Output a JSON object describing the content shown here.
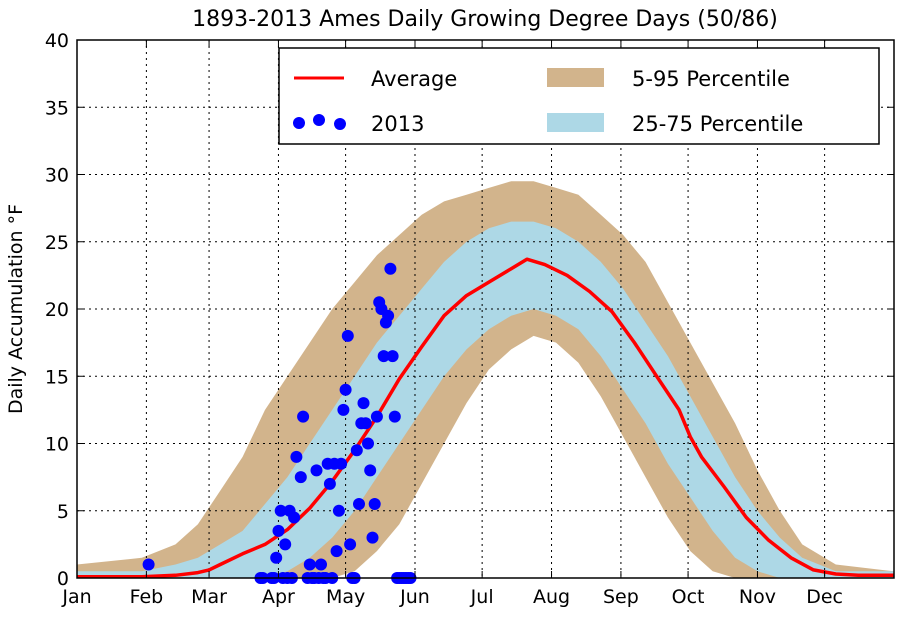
{
  "chart_data": {
    "type": "area",
    "title": "1893-2013 Ames Daily Growing Degree Days (50/86)",
    "xlabel": "",
    "ylabel": "Daily Accumulation °F",
    "ylim": [
      0,
      40
    ],
    "xlim": [
      1,
      366
    ],
    "yticks": [
      0,
      5,
      10,
      15,
      20,
      25,
      30,
      35,
      40
    ],
    "xtick_labels": [
      "Jan",
      "Feb",
      "Mar",
      "Apr",
      "May",
      "Jun",
      "Jul",
      "Aug",
      "Sep",
      "Oct",
      "Nov",
      "Dec"
    ],
    "xtick_days": [
      1,
      32,
      60,
      91,
      121,
      152,
      182,
      213,
      244,
      274,
      305,
      335
    ],
    "grid": true,
    "legend_placement": "top-right",
    "legend": {
      "average": "Average",
      "current_year": "2013",
      "p5_95": "5-95 Percentile",
      "p25_75": "25-75 Percentile"
    },
    "colors": {
      "average": "#ff0000",
      "current_year": "#0000ff",
      "p5_95": "#d2b48c",
      "p25_75": "#add8e6"
    },
    "series": [
      {
        "name": "Average",
        "x": [
          1,
          15,
          30,
          45,
          55,
          60,
          65,
          75,
          85,
          95,
          105,
          115,
          125,
          135,
          145,
          155,
          165,
          175,
          185,
          195,
          202,
          210,
          220,
          230,
          240,
          250,
          260,
          270,
          275,
          280,
          290,
          300,
          310,
          320,
          330,
          340,
          350,
          366
        ],
        "y": [
          0.1,
          0.1,
          0.1,
          0.2,
          0.4,
          0.6,
          1.0,
          1.8,
          2.5,
          3.6,
          5.2,
          7.2,
          9.5,
          12.0,
          14.8,
          17.2,
          19.5,
          21.0,
          22.0,
          23.0,
          23.7,
          23.3,
          22.5,
          21.3,
          19.8,
          17.5,
          15.0,
          12.5,
          10.5,
          9.0,
          6.8,
          4.5,
          2.8,
          1.5,
          0.6,
          0.3,
          0.2,
          0.2
        ]
      },
      {
        "name": "2013",
        "x": [
          33,
          83,
          84,
          88,
          89,
          90,
          91,
          92,
          93,
          94,
          95,
          96,
          97,
          98,
          99,
          101,
          102,
          104,
          105,
          106,
          107,
          108,
          109,
          110,
          111,
          112,
          113,
          114,
          115,
          116,
          117,
          118,
          119,
          120,
          121,
          122,
          123,
          124,
          125,
          126,
          127,
          128,
          129,
          130,
          131,
          132,
          133,
          134,
          135,
          136,
          137,
          138,
          139,
          140,
          141,
          142,
          143,
          144,
          145,
          146,
          147,
          148,
          149,
          150
        ],
        "y": [
          1,
          0,
          0,
          0,
          0,
          1.5,
          3.5,
          5,
          0,
          2.5,
          0,
          5,
          0,
          4.5,
          9,
          7.5,
          12,
          0,
          1,
          0,
          0,
          8,
          0,
          1,
          0,
          0,
          8.5,
          7,
          0,
          8.5,
          2,
          5,
          8.5,
          12.5,
          14,
          18,
          2.5,
          0,
          0,
          9.5,
          5.5,
          11.5,
          13,
          11.5,
          10,
          8,
          3,
          5.5,
          12,
          20.5,
          20,
          16.5,
          19,
          19.5,
          23,
          16.5,
          12,
          0,
          0,
          0,
          0,
          0,
          0,
          0
        ]
      }
    ],
    "bands": [
      {
        "name": "5-95 Percentile",
        "x": [
          1,
          30,
          45,
          55,
          65,
          75,
          85,
          95,
          105,
          115,
          125,
          135,
          145,
          155,
          165,
          175,
          185,
          195,
          205,
          215,
          225,
          235,
          245,
          255,
          265,
          275,
          285,
          295,
          305,
          315,
          325,
          340,
          366
        ],
        "lower": [
          0,
          0,
          0,
          0,
          0,
          0,
          0,
          0,
          0,
          0,
          0.5,
          2,
          4,
          7,
          10,
          13,
          15.5,
          17,
          18,
          17.5,
          16,
          13.5,
          10.5,
          7.5,
          4.5,
          2,
          0.5,
          0,
          0,
          0,
          0,
          0,
          0
        ],
        "upper": [
          1,
          1.5,
          2.5,
          4,
          6.5,
          9,
          12.5,
          15,
          17.5,
          20,
          22,
          24,
          25.5,
          27,
          28,
          28.5,
          29,
          29.5,
          29.5,
          29,
          28.5,
          27,
          25.5,
          23.5,
          20.5,
          17.5,
          14.5,
          11.5,
          8,
          5,
          2.5,
          1,
          0.5
        ]
      },
      {
        "name": "25-75 Percentile",
        "x": [
          1,
          30,
          45,
          55,
          65,
          75,
          85,
          95,
          105,
          115,
          125,
          135,
          145,
          155,
          165,
          175,
          185,
          195,
          205,
          215,
          225,
          235,
          245,
          255,
          265,
          275,
          285,
          295,
          305,
          315,
          325,
          340,
          366
        ],
        "lower": [
          0,
          0,
          0,
          0,
          0,
          0,
          0,
          0.5,
          1.5,
          3,
          5,
          7.5,
          10,
          12.5,
          15,
          17,
          18.5,
          19.5,
          20,
          19.5,
          18.5,
          16.5,
          14,
          11.5,
          8.5,
          6,
          3.5,
          1.5,
          0.5,
          0,
          0,
          0,
          0
        ],
        "upper": [
          0.5,
          0.5,
          1,
          1.5,
          2.5,
          3.5,
          5.5,
          7.5,
          10,
          12.5,
          15,
          17.5,
          19.5,
          21.5,
          23.5,
          25,
          26,
          26.5,
          26.5,
          26,
          25,
          23.5,
          21.5,
          19,
          16.5,
          13.5,
          10.5,
          7.5,
          5,
          3,
          1.5,
          0.5,
          0.5
        ]
      }
    ]
  }
}
